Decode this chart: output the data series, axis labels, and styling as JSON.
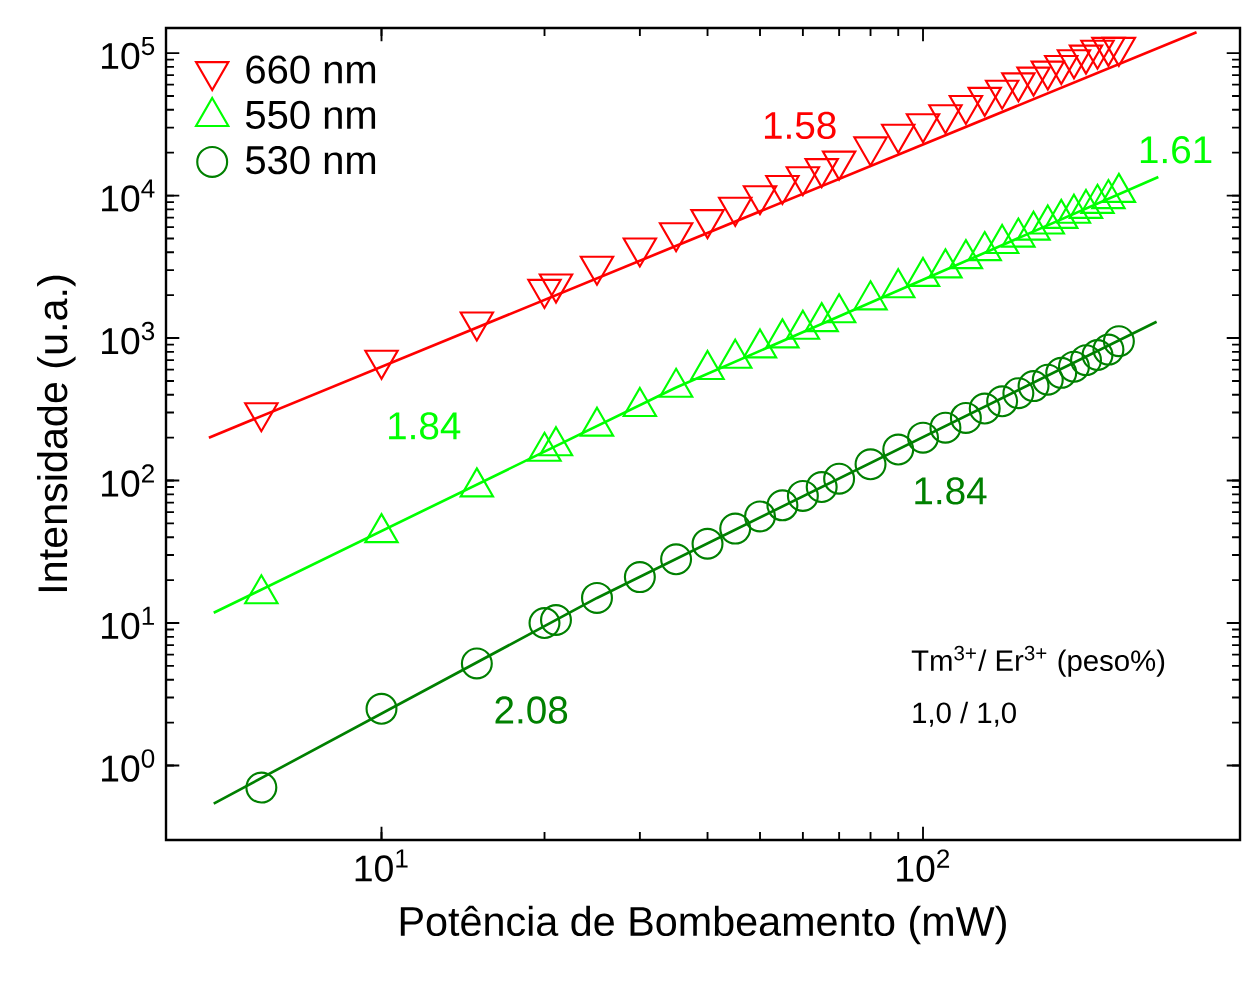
{
  "chart_data": {
    "type": "scatter",
    "xlabel": "Potência de Bombeamento (mW)",
    "ylabel": "Intensidade (u.a.)",
    "log": "xy",
    "xlim": [
      4,
      385
    ],
    "ylim": [
      0.3,
      150000
    ],
    "xticks": [
      {
        "value": 10,
        "label": "10$^{1}$"
      },
      {
        "value": 100,
        "label": "10$^{2}$"
      }
    ],
    "yticks": [
      {
        "value": 1,
        "label": "10$^{0}$"
      },
      {
        "value": 10,
        "label": "10$^{1}$"
      },
      {
        "value": 100,
        "label": "10$^{2}$"
      },
      {
        "value": 1000,
        "label": "10$^{3}$"
      },
      {
        "value": 10000,
        "label": "10$^{4}$"
      },
      {
        "value": 100000,
        "label": "10$^{5}$"
      }
    ],
    "x": [
      6,
      10,
      15,
      20,
      21,
      25,
      30,
      35,
      40,
      45,
      50,
      55,
      60,
      65,
      70,
      80,
      90,
      100,
      110,
      120,
      130,
      140,
      150,
      160,
      170,
      180,
      190,
      200,
      210,
      220,
      230
    ],
    "grid": false,
    "legend": "top left",
    "series": [
      {
        "name": "660 nm",
        "color": "#ff0000",
        "marker": "triangle_down",
        "values": [
          300,
          700,
          1300,
          2200,
          2400,
          3200,
          4300,
          5500,
          6800,
          8300,
          10000,
          11800,
          13600,
          15500,
          17500,
          22000,
          27000,
          32000,
          37000,
          43000,
          49000,
          55000,
          62000,
          68000,
          75000,
          82000,
          90000,
          97000,
          105000,
          110000,
          110000
        ]
      },
      {
        "name": "550 nm",
        "color": "#00ff00",
        "marker": "triangle",
        "values": [
          16,
          43,
          90,
          160,
          175,
          240,
          330,
          450,
          600,
          720,
          850,
          1000,
          1150,
          1300,
          1500,
          1850,
          2250,
          2700,
          3100,
          3600,
          4100,
          4600,
          5100,
          5700,
          6300,
          6900,
          7500,
          8100,
          8800,
          9500,
          10500
        ]
      },
      {
        "name": "530 nm",
        "color": "#008000",
        "marker": "circle",
        "values": [
          0.7,
          2.5,
          5.2,
          10,
          10.5,
          15,
          21,
          28,
          36,
          46,
          56,
          67,
          78,
          90,
          103,
          130,
          165,
          200,
          235,
          275,
          320,
          360,
          410,
          460,
          510,
          570,
          630,
          700,
          760,
          830,
          950
        ]
      },
      {
        "type": "line",
        "color": "#ff0000",
        "x": [
          4.8,
          320
        ],
        "values": [
          200,
          140000
        ]
      },
      {
        "type": "line",
        "color": "#00ff00",
        "x": [
          4.9,
          35,
          272
        ],
        "values": [
          11.8,
          450,
          13500
        ]
      },
      {
        "type": "line",
        "color": "#008000",
        "x": [
          4.9,
          25,
          270
        ],
        "values": [
          0.54,
          15,
          1300
        ]
      }
    ],
    "annotations": [
      "1.58",
      "1.61",
      "1.84",
      "1.84",
      "2.08",
      "Tm$^{3+}$/ Er$^{3+}$ (peso%)",
      "1,0  / 1,0"
    ]
  }
}
